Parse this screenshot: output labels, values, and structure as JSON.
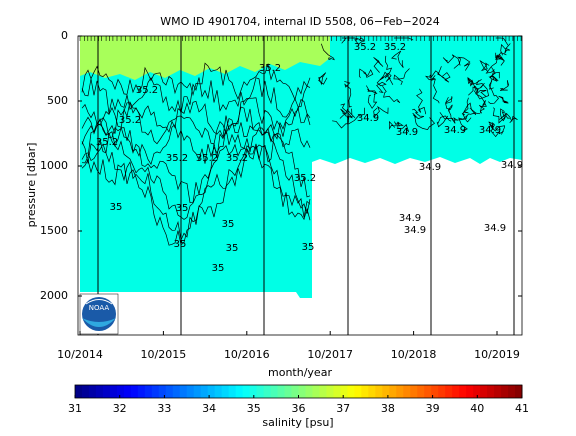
{
  "chart_data": {
    "type": "contour",
    "title": "WMO ID 4901704, internal ID 5508, 06−Feb−2024",
    "x_label": "month/year",
    "y_label": "pressure [dbar]",
    "xticks": [
      "10/2014",
      "10/2015",
      "10/2016",
      "10/2017",
      "10/2018",
      "10/2019"
    ],
    "ylim": [
      0,
      2300
    ],
    "yticks": [
      0,
      500,
      1000,
      1500,
      2000
    ],
    "y_reversed": true,
    "contour_labels": [
      35.2,
      35.2,
      35.2,
      35.2,
      35.2,
      35.2,
      35,
      35,
      35,
      35,
      35,
      35,
      35,
      35.2,
      35.2,
      35.2,
      35.2,
      34.9,
      34.9,
      34.9,
      34.9,
      34.9,
      34.9,
      34.9,
      34.9,
      34.9
    ],
    "colorbar": {
      "label": "salinity [psu]",
      "lim": [
        31,
        41
      ],
      "ticks": [
        31,
        32,
        33,
        34,
        35,
        36,
        37,
        38,
        39,
        40,
        41
      ]
    }
  }
}
